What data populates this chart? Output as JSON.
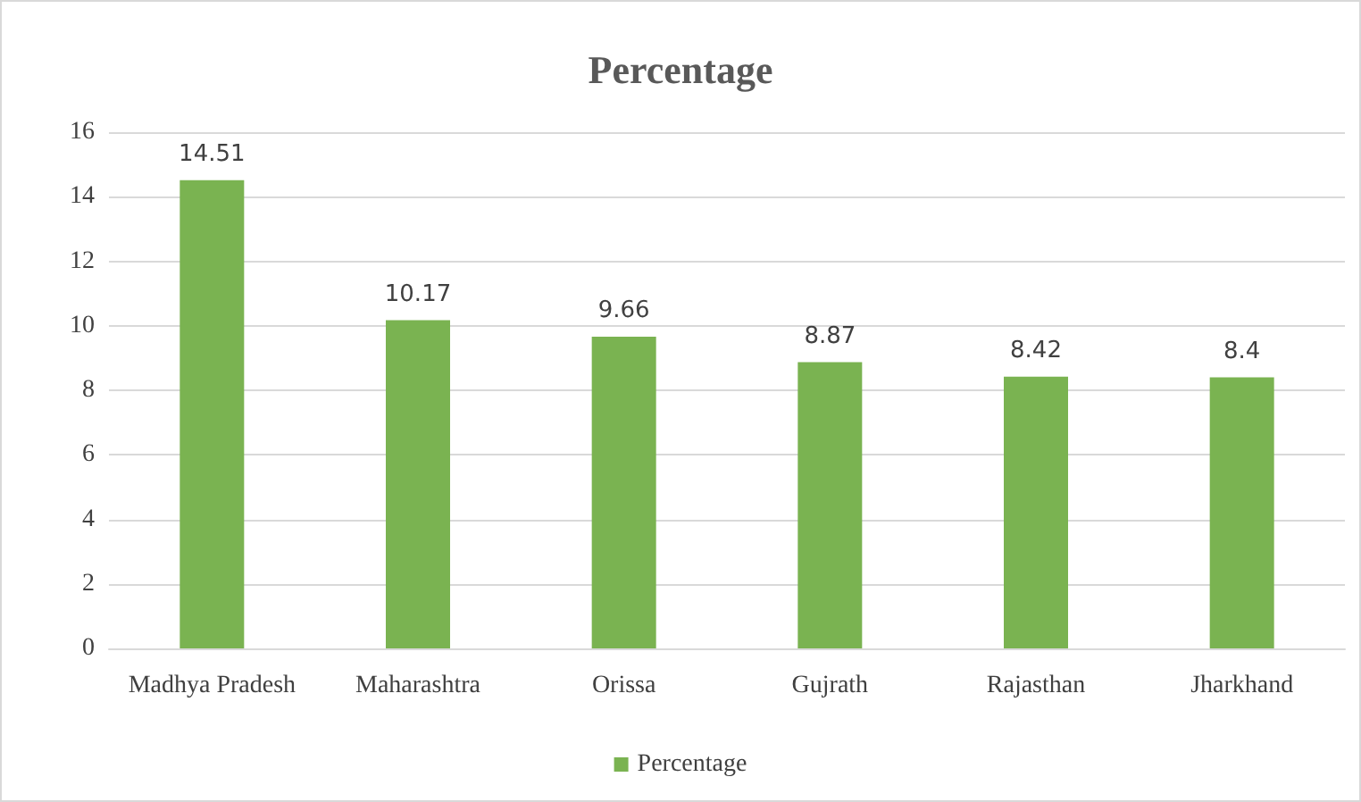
{
  "chart_data": {
    "type": "bar",
    "title": "Percentage",
    "categories": [
      "Madhya Pradesh",
      "Maharashtra",
      "Orissa",
      "Gujrath",
      "Rajasthan",
      "Jharkhand"
    ],
    "series": [
      {
        "name": "Percentage",
        "color": "#7ab351",
        "values": [
          14.51,
          10.17,
          9.66,
          8.87,
          8.42,
          8.4
        ]
      }
    ],
    "ylim": [
      0,
      16
    ],
    "yticks": [
      0,
      2,
      4,
      6,
      8,
      10,
      12,
      14,
      16
    ],
    "grid": "y",
    "legend": "bottom",
    "data_labels": true
  }
}
